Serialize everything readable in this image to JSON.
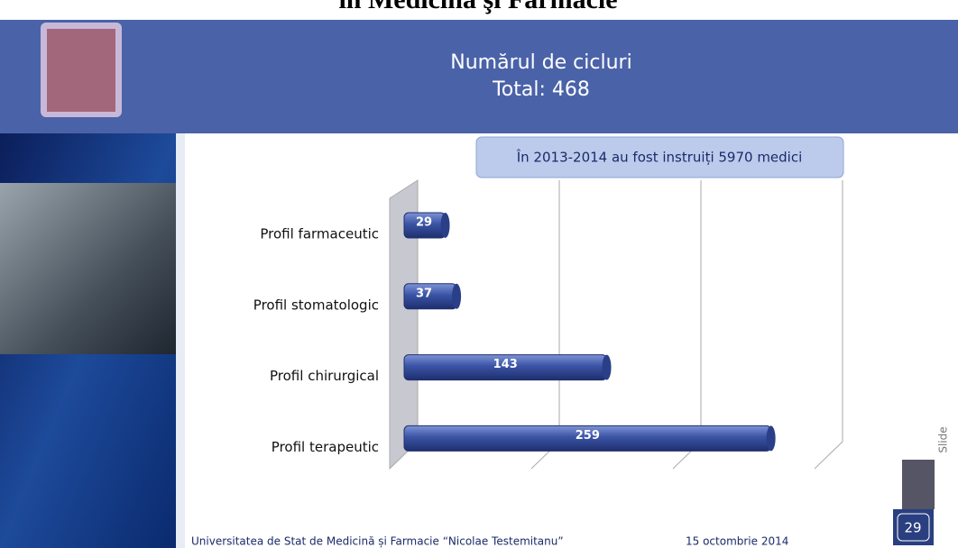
{
  "top_title": "în Medicină şi Farmacie",
  "header": {
    "title": "Numărul de cicluri",
    "subtitle": "Total: 468"
  },
  "chart_data": {
    "type": "bar",
    "orientation": "horizontal",
    "annotation": "În 2013-2014 au fost instruiți 5970 medici",
    "categories": [
      "Profil farmaceutic",
      "Profil stomatologic",
      "Profil chirurgical",
      "Profil terapeutic"
    ],
    "values": [
      29,
      37,
      143,
      259
    ],
    "color": "#3a53a4",
    "xlim": [
      0,
      300
    ],
    "xticks": [
      0,
      100,
      200,
      300
    ],
    "grid": true
  },
  "footer": {
    "institution": "Universitatea de Stat de Medicină și Farmacie “Nicolae Testemitanu”",
    "date": "15 octombrie 2014"
  },
  "slide": {
    "label": "Slide",
    "number": "29"
  }
}
